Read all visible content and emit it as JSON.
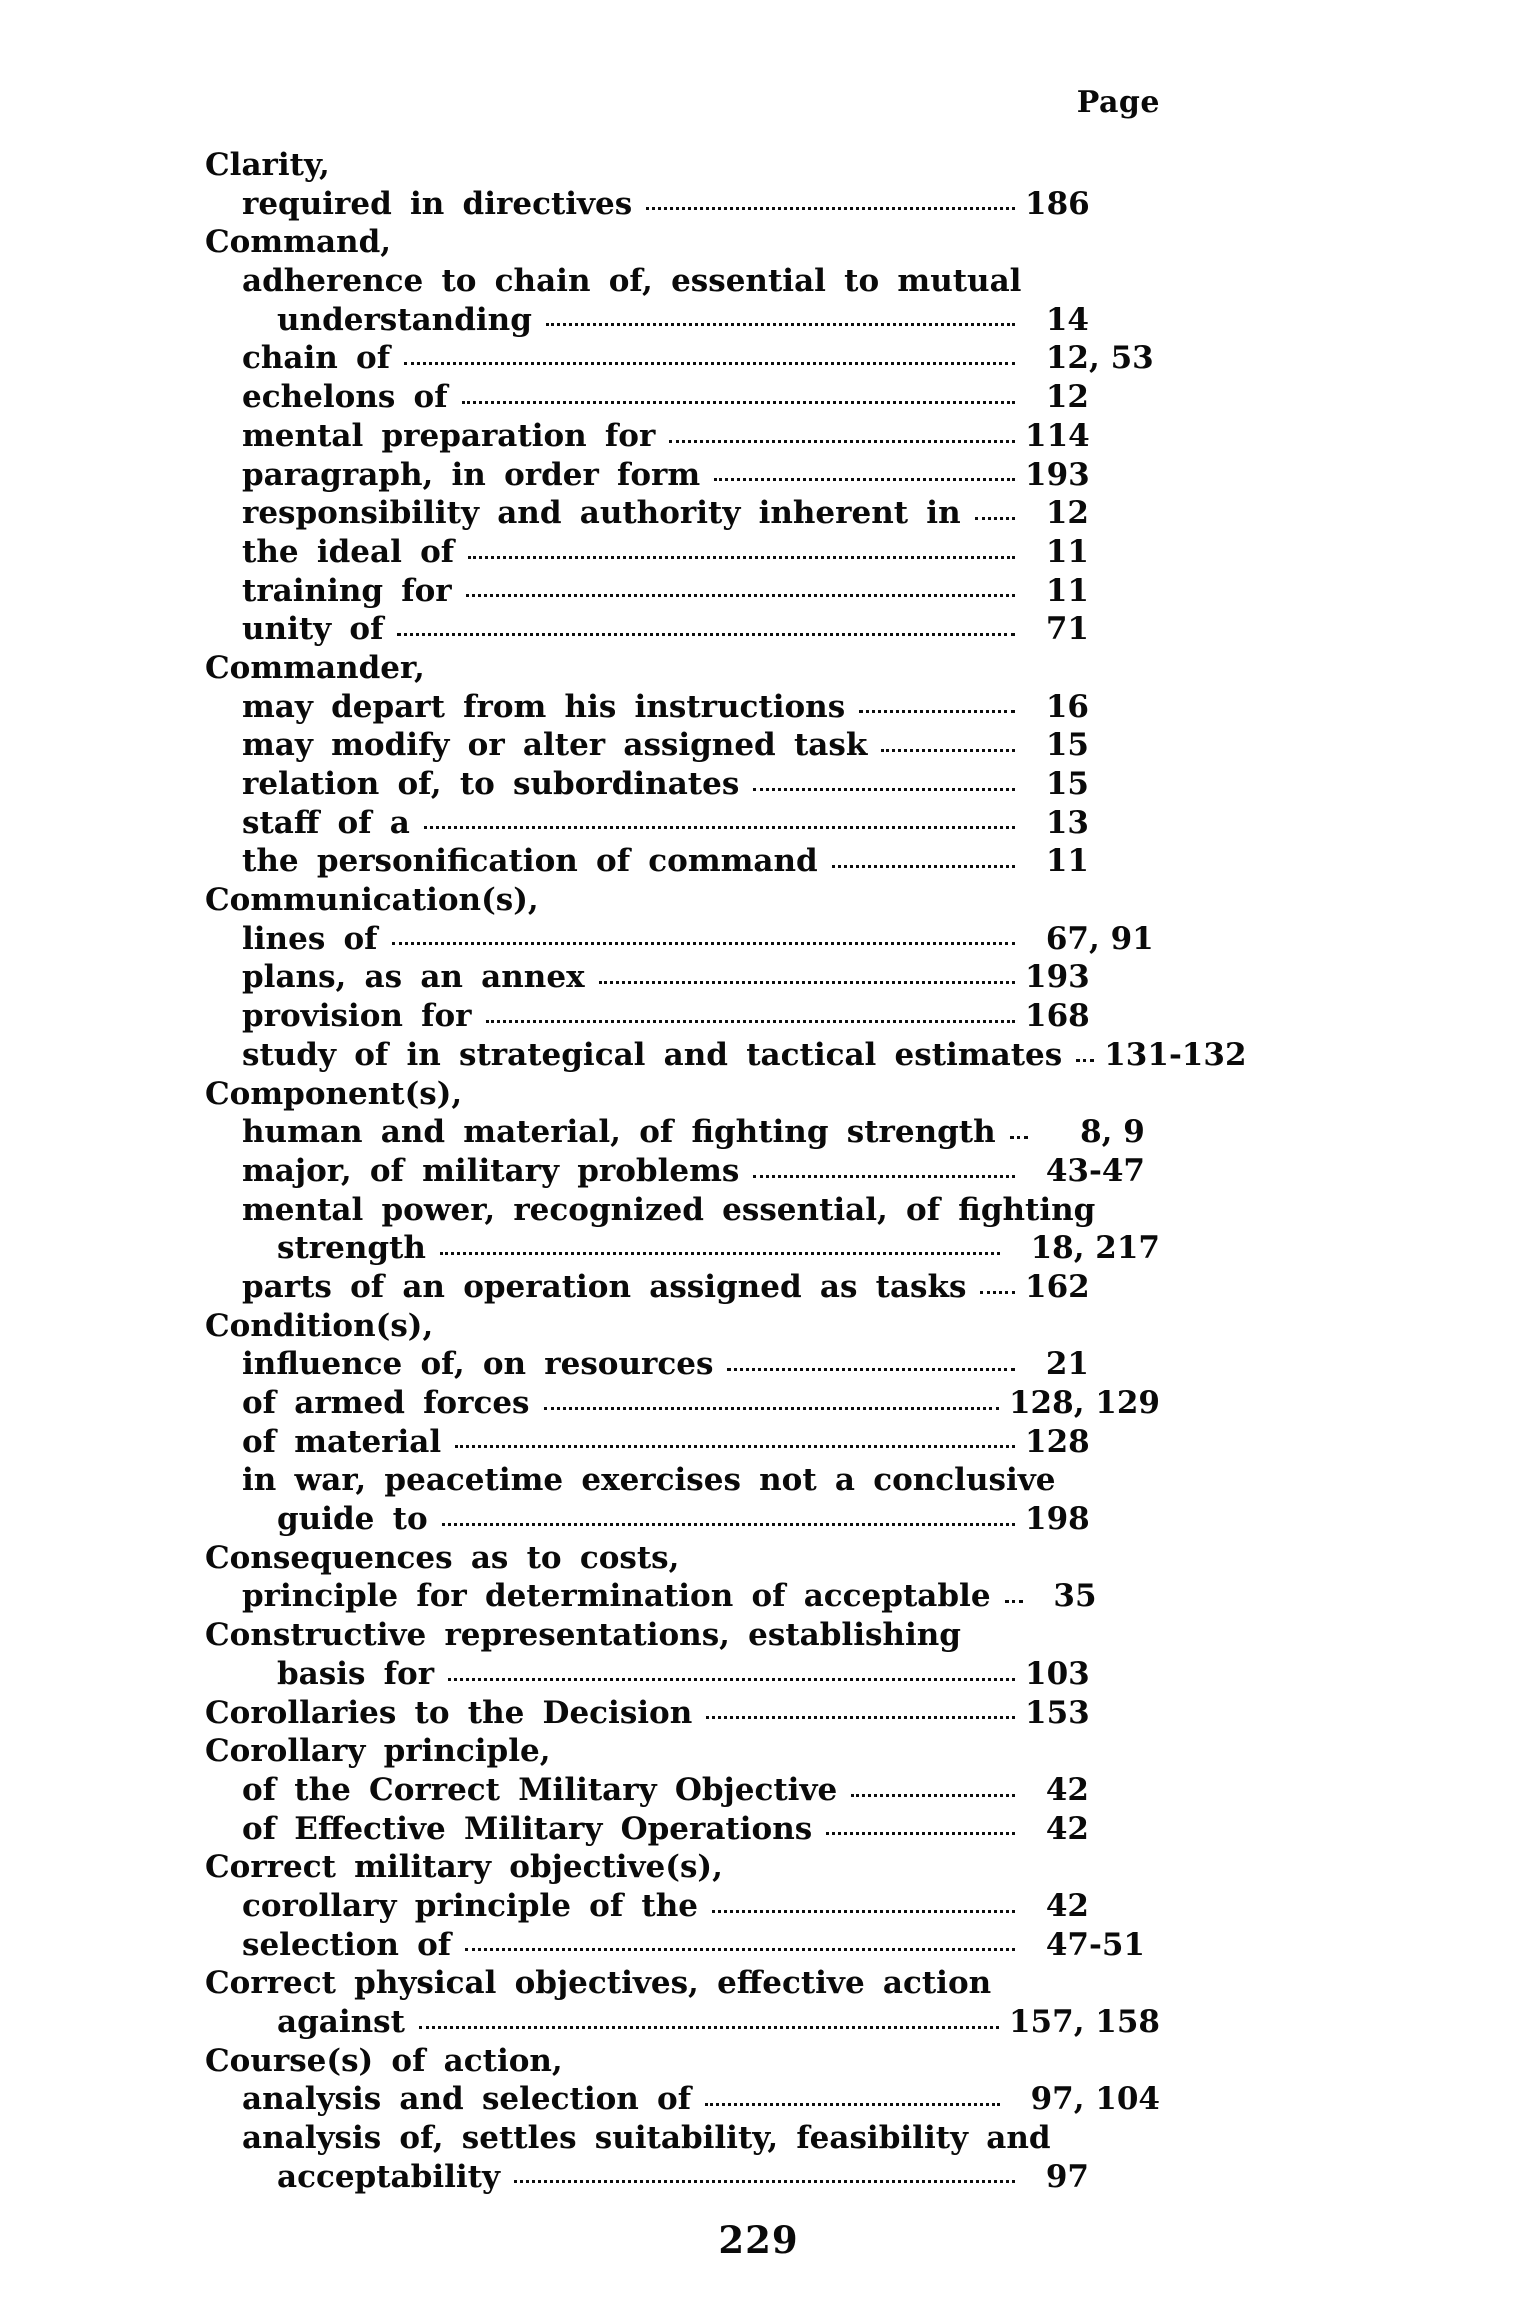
{
  "page": {
    "header_label": "Page",
    "footer_page_number": "229",
    "background_color": "#ffffff",
    "text_color": "#0a0a0a"
  },
  "index": {
    "entries": [
      {
        "text": "Clarity,",
        "indent": 0,
        "pages": ""
      },
      {
        "text": "required in directives",
        "indent": 1,
        "pages": "186"
      },
      {
        "text": "Command,",
        "indent": 0,
        "pages": ""
      },
      {
        "text": "adherence to chain of, essential to mutual",
        "indent": 1,
        "pages": ""
      },
      {
        "text": "understanding",
        "indent": 2,
        "pages": "14"
      },
      {
        "text": "chain of",
        "indent": 1,
        "pages": "12, 53"
      },
      {
        "text": "echelons of",
        "indent": 1,
        "pages": "12"
      },
      {
        "text": "mental preparation for",
        "indent": 1,
        "pages": "114"
      },
      {
        "text": "paragraph, in order form",
        "indent": 1,
        "pages": "193"
      },
      {
        "text": "responsibility and authority inherent in",
        "indent": 1,
        "pages": "12"
      },
      {
        "text": "the ideal of",
        "indent": 1,
        "pages": "11"
      },
      {
        "text": "training for",
        "indent": 1,
        "pages": "11"
      },
      {
        "text": "unity of",
        "indent": 1,
        "pages": "71"
      },
      {
        "text": "Commander,",
        "indent": 0,
        "pages": ""
      },
      {
        "text": "may depart from his instructions",
        "indent": 1,
        "pages": "16"
      },
      {
        "text": "may modify or alter assigned task",
        "indent": 1,
        "pages": "15"
      },
      {
        "text": "relation of, to subordinates",
        "indent": 1,
        "pages": "15"
      },
      {
        "text": "staff of a",
        "indent": 1,
        "pages": "13"
      },
      {
        "text": "the personification of command",
        "indent": 1,
        "pages": "11"
      },
      {
        "text": "Communication(s),",
        "indent": 0,
        "pages": ""
      },
      {
        "text": "lines of",
        "indent": 1,
        "pages": "67, 91"
      },
      {
        "text": "plans, as an annex",
        "indent": 1,
        "pages": "193"
      },
      {
        "text": "provision for",
        "indent": 1,
        "pages": "168"
      },
      {
        "text": "study of in strategical and tactical estimates",
        "indent": 1,
        "pages": "131-132"
      },
      {
        "text": "Component(s),",
        "indent": 0,
        "pages": ""
      },
      {
        "text": "human and material, of fighting strength",
        "indent": 1,
        "pages": "8, 9"
      },
      {
        "text": "major, of military problems",
        "indent": 1,
        "pages": "43-47"
      },
      {
        "text": "mental power, recognized essential, of fighting",
        "indent": 1,
        "pages": ""
      },
      {
        "text": "strength",
        "indent": 2,
        "pages": "18, 217"
      },
      {
        "text": "parts of an operation assigned as tasks",
        "indent": 1,
        "pages": "162"
      },
      {
        "text": "Condition(s),",
        "indent": 0,
        "pages": ""
      },
      {
        "text": "influence of, on resources",
        "indent": 1,
        "pages": "21"
      },
      {
        "text": "of armed forces",
        "indent": 1,
        "pages": "128, 129"
      },
      {
        "text": "of material",
        "indent": 1,
        "pages": "128"
      },
      {
        "text": "in war, peacetime exercises not a conclusive",
        "indent": 1,
        "pages": ""
      },
      {
        "text": "guide to",
        "indent": 2,
        "pages": "198"
      },
      {
        "text": "Consequences as to costs,",
        "indent": 0,
        "pages": ""
      },
      {
        "text": "principle for determination of acceptable",
        "indent": 1,
        "pages": "35"
      },
      {
        "text": "Constructive representations, establishing",
        "indent": 0,
        "pages": ""
      },
      {
        "text": "basis for",
        "indent": 2,
        "pages": "103"
      },
      {
        "text": "Corollaries to the Decision",
        "indent": 0,
        "pages": "153"
      },
      {
        "text": "Corollary principle,",
        "indent": 0,
        "pages": ""
      },
      {
        "text": "of the Correct Military Objective",
        "indent": 1,
        "pages": "42"
      },
      {
        "text": "of Effective Military Operations",
        "indent": 1,
        "pages": "42"
      },
      {
        "text": "Correct military objective(s),",
        "indent": 0,
        "pages": ""
      },
      {
        "text": "corollary principle of the",
        "indent": 1,
        "pages": "42"
      },
      {
        "text": "selection of",
        "indent": 1,
        "pages": "47-51"
      },
      {
        "text": "Correct physical objectives, effective action",
        "indent": 0,
        "pages": ""
      },
      {
        "text": "against",
        "indent": 2,
        "pages": "157, 158"
      },
      {
        "text": "Course(s) of action,",
        "indent": 0,
        "pages": ""
      },
      {
        "text": "analysis and selection of",
        "indent": 1,
        "pages": "97, 104"
      },
      {
        "text": "analysis of, settles suitability, feasibility and",
        "indent": 1,
        "pages": ""
      },
      {
        "text": "acceptability",
        "indent": 2,
        "pages": "97"
      }
    ]
  }
}
